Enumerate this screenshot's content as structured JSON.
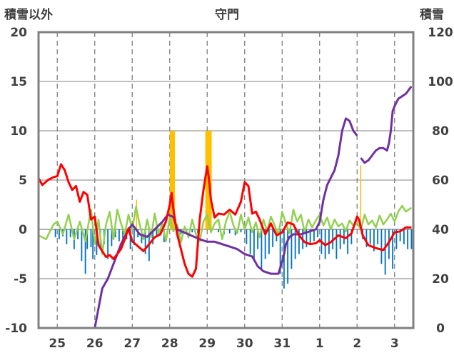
{
  "chart_data": {
    "type": "line",
    "title": "守門",
    "ylabel_left": "積雪以外",
    "ylabel_right": "積雪",
    "ylim_left": [
      -10,
      20
    ],
    "ylim_right": [
      0,
      120
    ],
    "yticks_left": [
      "-10",
      "-5",
      "0",
      "5",
      "10",
      "15",
      "20"
    ],
    "yticks_right": [
      "0",
      "20",
      "40",
      "60",
      "80",
      "100",
      "120"
    ],
    "xlim": [
      24.5,
      34.5
    ],
    "categories": [
      "25",
      "26",
      "27",
      "28",
      "29",
      "30",
      "31",
      "1",
      "2",
      "3"
    ],
    "day_positions": [
      25,
      26,
      27,
      28,
      29,
      30,
      31,
      32,
      33,
      34
    ],
    "colors": {
      "temperature": "#ff0000",
      "snow_depth": "#7030a0",
      "snowfall": "#ffc000",
      "snow_change": "#0070c0",
      "wind": "#92d050",
      "grid": "#808080",
      "frame": "#808080"
    },
    "series": [
      {
        "name": "temperature",
        "axis": "left",
        "style": "line",
        "x": [
          24.5,
          24.6,
          24.75,
          24.9,
          25.0,
          25.1,
          25.2,
          25.3,
          25.4,
          25.5,
          25.6,
          25.7,
          25.8,
          25.9,
          26.0,
          26.1,
          26.2,
          26.3,
          26.4,
          26.5,
          26.6,
          26.7,
          26.8,
          26.9,
          27.0,
          27.15,
          27.3,
          27.45,
          27.6,
          27.75,
          27.9,
          28.0,
          28.05,
          28.1,
          28.2,
          28.3,
          28.4,
          28.5,
          28.6,
          28.7,
          28.8,
          28.9,
          29.0,
          29.05,
          29.1,
          29.2,
          29.3,
          29.45,
          29.6,
          29.75,
          29.9,
          30.0,
          30.1,
          30.2,
          30.3,
          30.4,
          30.55,
          30.7,
          30.85,
          31.0,
          31.15,
          31.3,
          31.45,
          31.6,
          31.75,
          31.9,
          32.0,
          32.15,
          32.3,
          32.5,
          32.7,
          32.85,
          33.0,
          33.05,
          33.15,
          33.3,
          33.5,
          33.7,
          33.85,
          34.0,
          34.15,
          34.3,
          34.45
        ],
        "values": [
          5.2,
          4.5,
          5.0,
          5.3,
          5.4,
          6.6,
          6.0,
          4.8,
          4.0,
          4.4,
          2.8,
          3.8,
          3.5,
          1.0,
          1.3,
          -1.6,
          -2.2,
          -2.8,
          -2.6,
          -3.0,
          -2.5,
          -2.0,
          -1.0,
          0.1,
          -1.2,
          -1.7,
          -2.2,
          -1.5,
          -0.8,
          -0.5,
          0.8,
          2.5,
          3.7,
          2.0,
          -0.5,
          -2.0,
          -3.5,
          -4.5,
          -4.8,
          -4.0,
          1.0,
          4.0,
          6.4,
          5.0,
          3.0,
          1.2,
          1.6,
          1.5,
          2.0,
          1.5,
          2.8,
          4.8,
          4.4,
          1.6,
          1.8,
          1.0,
          -0.5,
          0.6,
          -0.6,
          -0.3,
          0.7,
          0.5,
          -0.6,
          -1.3,
          -1.5,
          -1.4,
          -1.1,
          -1.6,
          -1.3,
          -0.6,
          -0.9,
          -0.4,
          1.3,
          1.0,
          -0.6,
          -1.6,
          -1.9,
          -2.1,
          -1.3,
          -0.3,
          -0.2,
          0.2,
          0.2
        ]
      },
      {
        "name": "snow_depth",
        "axis": "right",
        "style": "line",
        "x": [
          24.5,
          25.0,
          25.5,
          25.8,
          26.0,
          26.1,
          26.2,
          26.35,
          26.5,
          26.7,
          26.9,
          27.0,
          27.2,
          27.4,
          27.6,
          27.8,
          27.95,
          28.1,
          28.2,
          28.5,
          28.8,
          29.0,
          29.2,
          29.4,
          29.6,
          29.8,
          30.0,
          30.2,
          30.35,
          30.5,
          30.7,
          30.9,
          31.0,
          31.05,
          31.1,
          31.2,
          31.3,
          31.5,
          31.7,
          31.9,
          32.0,
          32.1,
          32.2,
          32.3,
          32.4,
          32.5,
          32.6,
          32.7,
          32.8,
          32.9,
          33.0
        ],
        "values": [
          0,
          0,
          0,
          0,
          0,
          8,
          16,
          20,
          26,
          34,
          40,
          42,
          38,
          37,
          40,
          43,
          46,
          45,
          40,
          38,
          36,
          35,
          35,
          34,
          33,
          32,
          30,
          29,
          25,
          23,
          22,
          22,
          27,
          30,
          34,
          37,
          38,
          38,
          39,
          40,
          43,
          52,
          58,
          61,
          64,
          70,
          80,
          85,
          84,
          80,
          78
        ]
      },
      {
        "name": "snow_depth_2",
        "axis": "right",
        "style": "line",
        "x": [
          33.1,
          33.2,
          33.3,
          33.4,
          33.5,
          33.6,
          33.7,
          33.8,
          33.85,
          33.9,
          33.95,
          34.0,
          34.1,
          34.2,
          34.3,
          34.4,
          34.45
        ],
        "values": [
          69,
          67,
          68,
          70,
          72,
          73,
          73,
          72,
          75,
          80,
          88,
          90,
          93,
          94,
          95,
          97,
          98
        ]
      },
      {
        "name": "wind",
        "axis": "left",
        "style": "line",
        "x": [
          24.5,
          24.7,
          24.9,
          25.0,
          25.15,
          25.3,
          25.45,
          25.6,
          25.75,
          25.9,
          26.0,
          26.1,
          26.2,
          26.3,
          26.4,
          26.5,
          26.6,
          26.7,
          26.8,
          26.9,
          27.0,
          27.1,
          27.2,
          27.3,
          27.4,
          27.5,
          27.6,
          27.7,
          27.8,
          27.9,
          28.0,
          28.1,
          28.2,
          28.3,
          28.4,
          28.5,
          28.6,
          28.7,
          28.8,
          28.9,
          29.0,
          29.1,
          29.2,
          29.3,
          29.4,
          29.5,
          29.6,
          29.7,
          29.8,
          29.9,
          30.0,
          30.1,
          30.2,
          30.3,
          30.4,
          30.5,
          30.6,
          30.7,
          30.8,
          30.9,
          31.0,
          31.1,
          31.2,
          31.3,
          31.4,
          31.5,
          31.6,
          31.7,
          31.8,
          31.9,
          32.0,
          32.1,
          32.2,
          32.3,
          32.4,
          32.5,
          32.6,
          32.7,
          32.8,
          32.9,
          33.0,
          33.1,
          33.2,
          33.3,
          33.4,
          33.5,
          33.6,
          33.7,
          33.8,
          33.9,
          34.0,
          34.1,
          34.2,
          34.3,
          34.45
        ],
        "values": [
          -0.6,
          -1.0,
          0.5,
          0.8,
          -0.5,
          1.5,
          -1.0,
          0.8,
          -1.2,
          2.0,
          -1.5,
          1.0,
          -2.5,
          0.5,
          1.8,
          -1.0,
          2.0,
          0.6,
          -0.5,
          1.5,
          0.0,
          2.3,
          0.5,
          -1.0,
          1.0,
          -0.8,
          1.6,
          -0.5,
          0.6,
          -1.2,
          1.2,
          -0.2,
          0.5,
          -1.3,
          0.3,
          -0.8,
          1.0,
          -0.5,
          -1.2,
          0.8,
          1.5,
          -0.3,
          0.6,
          1.0,
          -1.0,
          0.8,
          1.8,
          0.4,
          -0.4,
          1.5,
          0.0,
          1.2,
          -0.3,
          0.7,
          -0.8,
          1.0,
          -0.2,
          1.3,
          0.4,
          -0.6,
          1.8,
          0.6,
          -0.4,
          2.0,
          0.8,
          1.5,
          -0.3,
          1.0,
          0.2,
          0.9,
          1.5,
          0.4,
          1.2,
          0.0,
          1.0,
          0.3,
          0.6,
          -0.2,
          0.9,
          0.4,
          0.6,
          0.0,
          1.5,
          0.5,
          0.9,
          0.2,
          1.4,
          0.5,
          1.0,
          1.6,
          0.8,
          1.8,
          2.4,
          1.8,
          2.2
        ]
      },
      {
        "name": "snowfall",
        "axis": "left",
        "style": "bar",
        "bars": [
          {
            "x0": 28.0,
            "x1": 28.14,
            "value": 10
          },
          {
            "x0": 28.95,
            "x1": 29.12,
            "value": 10
          },
          {
            "x0": 27.1,
            "x1": 27.13,
            "value": 3
          },
          {
            "x0": 33.08,
            "x1": 33.11,
            "value": 6.5
          }
        ]
      },
      {
        "name": "snow_change",
        "axis": "left",
        "style": "bar",
        "bar_width": 0.035,
        "x": [
          24.95,
          25.05,
          25.15,
          25.25,
          25.35,
          25.45,
          25.55,
          25.65,
          25.75,
          25.8,
          25.9,
          25.95,
          26.05,
          26.15,
          26.25,
          26.35,
          26.45,
          26.55,
          26.65,
          26.75,
          26.85,
          26.95,
          27.05,
          27.15,
          27.25,
          27.35,
          27.45,
          27.55,
          27.65,
          27.75,
          27.85,
          28.2,
          28.3,
          28.45,
          28.6,
          28.75,
          29.3,
          29.45,
          29.6,
          29.75,
          29.9,
          30.05,
          30.15,
          30.25,
          30.35,
          30.45,
          30.55,
          30.65,
          30.75,
          30.85,
          30.95,
          31.05,
          31.15,
          31.25,
          31.35,
          31.45,
          31.55,
          31.65,
          31.75,
          31.85,
          31.95,
          32.05,
          32.15,
          32.25,
          32.35,
          32.45,
          32.55,
          32.65,
          32.75,
          32.85,
          33.15,
          33.25,
          33.35,
          33.45,
          33.55,
          33.65,
          33.75,
          33.85,
          33.95,
          34.05,
          34.15,
          34.25,
          34.35,
          34.45
        ],
        "values": [
          -0.8,
          -1.0,
          -0.7,
          -1.5,
          -0.8,
          -2.0,
          -1.0,
          -3.2,
          -4.5,
          -2.0,
          -1.8,
          -3.0,
          -2.6,
          -2.0,
          -1.5,
          -3.0,
          -1.7,
          -0.8,
          -1.2,
          -1.5,
          -1.0,
          -2.0,
          -1.6,
          -0.8,
          -1.4,
          -2.5,
          -3.2,
          -1.5,
          -0.7,
          -0.6,
          -1.3,
          -0.7,
          -0.5,
          -0.4,
          -0.3,
          -0.4,
          -0.3,
          -0.5,
          -0.4,
          -0.6,
          -0.3,
          -1.5,
          -2.5,
          -3.2,
          -2.0,
          -4.0,
          -3.0,
          -2.5,
          -1.8,
          -1.2,
          -4.5,
          -6.0,
          -5.5,
          -4.0,
          -3.0,
          -2.5,
          -2.0,
          -1.8,
          -1.6,
          -1.2,
          -0.8,
          -2.5,
          -3.0,
          -2.5,
          -2.0,
          -3.0,
          -2.0,
          -1.5,
          -2.5,
          -1.5,
          -1.0,
          -1.8,
          -1.5,
          -2.2,
          -1.5,
          -3.5,
          -4.6,
          -3.0,
          -4.0,
          -2.0,
          -1.2,
          -1.5,
          -2.0,
          -2.0
        ]
      }
    ]
  }
}
